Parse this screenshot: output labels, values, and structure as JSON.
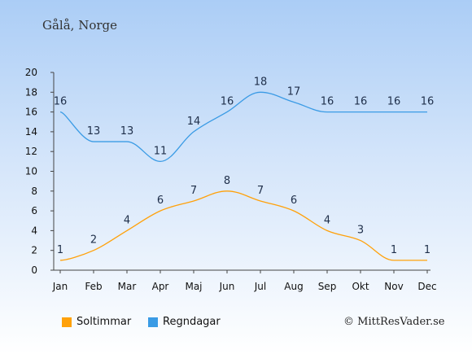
{
  "header": {
    "location": "Gålå, Norge"
  },
  "credit": "© MittResVader.se",
  "chart_data": {
    "type": "line",
    "categories": [
      "Jan",
      "Feb",
      "Mar",
      "Apr",
      "Maj",
      "Jun",
      "Jul",
      "Aug",
      "Sep",
      "Okt",
      "Nov",
      "Dec"
    ],
    "ylim": [
      0,
      20
    ],
    "yticks": [
      0,
      2,
      4,
      6,
      8,
      10,
      12,
      14,
      16,
      18,
      20
    ],
    "grid": false,
    "legend_position": "bottom-left",
    "series": [
      {
        "name": "Soltimmar",
        "color": "#ffa10a",
        "values": [
          1,
          2,
          4,
          6,
          7,
          8,
          7,
          6,
          4,
          3,
          1,
          1
        ]
      },
      {
        "name": "Regndagar",
        "color": "#3a9be5",
        "values": [
          16,
          13,
          13,
          11,
          14,
          16,
          18,
          17,
          16,
          16,
          16,
          16
        ]
      }
    ]
  }
}
